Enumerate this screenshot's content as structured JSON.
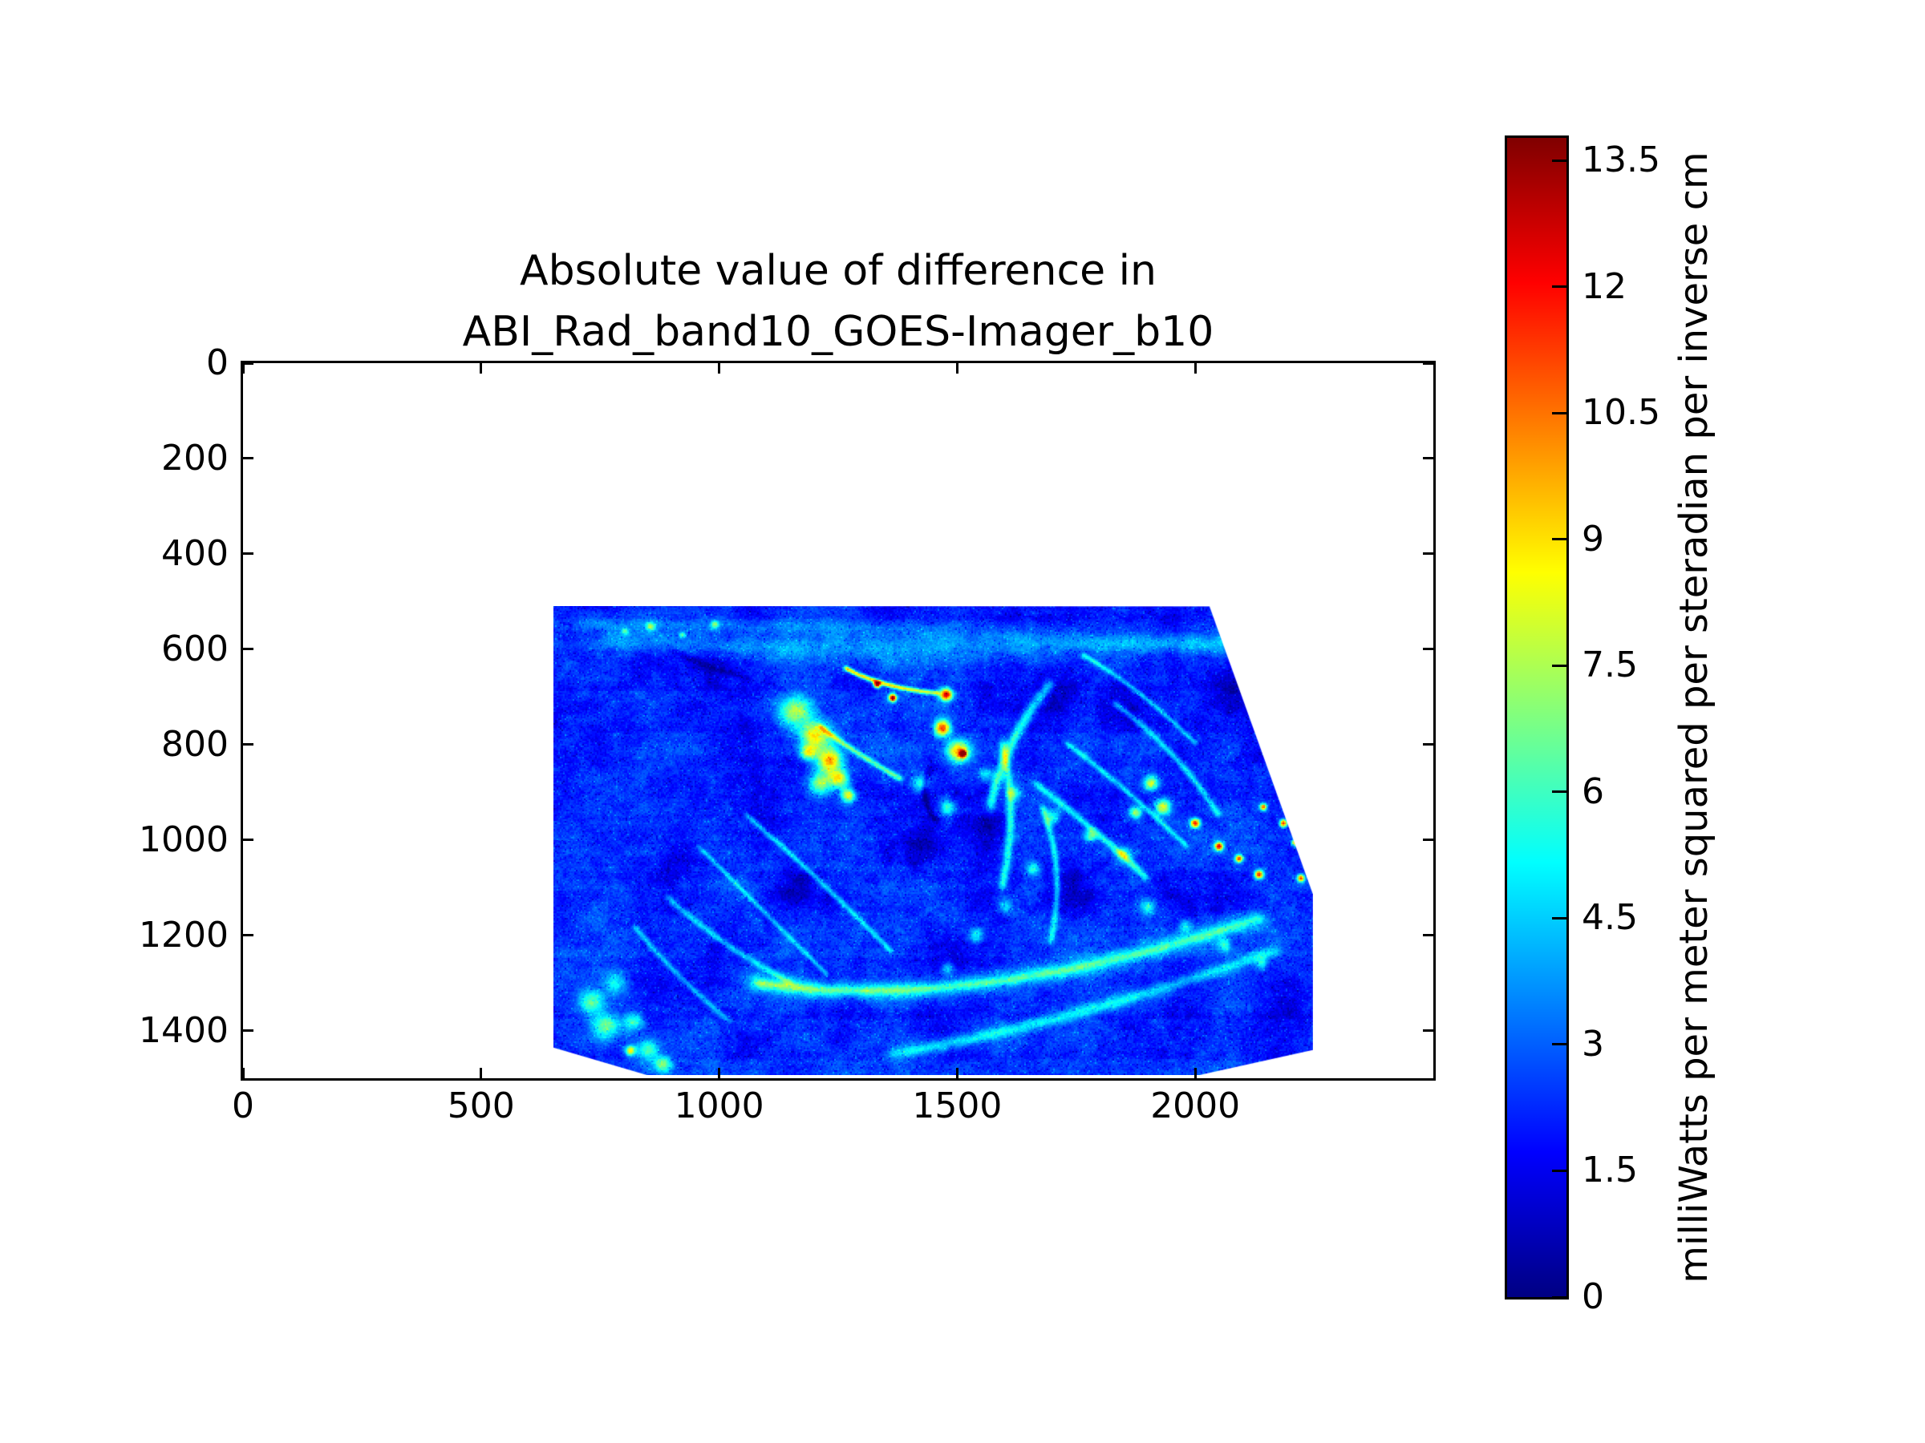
{
  "figure": {
    "title_line1": "Absolute value of difference in",
    "title_line2": "ABI_Rad_band10_GOES-Imager_b10"
  },
  "chart_data": {
    "type": "heatmap",
    "title": "Absolute value of difference in ABI_Rad_band10_GOES-Imager_b10",
    "xlabel": "",
    "ylabel": "",
    "colormap": "jet",
    "grid": false,
    "x_ticks": [
      0,
      500,
      1000,
      1500,
      2000
    ],
    "y_ticks": [
      0,
      200,
      400,
      600,
      800,
      1000,
      1200,
      1400
    ],
    "xlim": [
      0,
      2500
    ],
    "ylim": [
      1500,
      0
    ],
    "y_axis_inverted": true,
    "value_range": [
      0,
      13.77
    ],
    "colorbar_ticks": [
      0,
      1.5,
      3,
      4.5,
      6,
      7.5,
      9,
      10.5,
      12,
      13.5
    ],
    "colorbar_label": "milliWatts per meter squared per steradian per inverse cm",
    "data_extent": {
      "x": [
        652,
        2247
      ],
      "y": [
        509,
        1493
      ]
    },
    "region_polygon": [
      [
        652,
        509
      ],
      [
        2030,
        510
      ],
      [
        2247,
        1113
      ],
      [
        2247,
        1440
      ],
      [
        2008,
        1493
      ],
      [
        849,
        1493
      ],
      [
        652,
        1435
      ]
    ],
    "description": "Irregular swath of satellite radiance differences: background mostly 1-3 (blue) with cyan/green cloud streaks 4-6, yellow-orange hotspots 8-12 and sparse red maxima near 13.5",
    "features": {
      "hotspots": [
        [
          1160,
          730,
          35,
          5
        ],
        [
          1200,
          780,
          30,
          6.5
        ],
        [
          1230,
          830,
          26,
          7.5
        ],
        [
          1185,
          815,
          16,
          5
        ],
        [
          1250,
          870,
          20,
          6
        ],
        [
          1210,
          880,
          24,
          5
        ],
        [
          1270,
          905,
          15,
          6.5
        ],
        [
          1330,
          672,
          7,
          11.5
        ],
        [
          1363,
          700,
          8,
          11.5
        ],
        [
          1477,
          693,
          13,
          9.8
        ],
        [
          1469,
          763,
          17,
          9.2
        ],
        [
          1503,
          812,
          24,
          7.6
        ],
        [
          1512,
          817,
          7,
          10.6
        ],
        [
          1907,
          879,
          15,
          6.2
        ],
        [
          1932,
          929,
          17,
          6.6
        ],
        [
          1875,
          940,
          13,
          5.4
        ],
        [
          2000,
          963,
          10,
          9.6
        ],
        [
          2050,
          1013,
          9,
          10
        ],
        [
          2092,
          1039,
          8,
          9
        ],
        [
          2134,
          1072,
          9,
          9.6
        ],
        [
          2143,
          929,
          7,
          8.6
        ],
        [
          2185,
          963,
          8,
          9.2
        ],
        [
          2210,
          1005,
          7,
          8.2
        ],
        [
          2222,
          1080,
          8,
          9
        ],
        [
          812,
          1442,
          11,
          6.6
        ],
        [
          760,
          1390,
          28,
          4
        ],
        [
          820,
          1380,
          20,
          3.6
        ],
        [
          780,
          1300,
          24,
          3
        ],
        [
          730,
          1340,
          26,
          3.4
        ],
        [
          850,
          1440,
          22,
          4
        ],
        [
          880,
          1470,
          18,
          4.4
        ],
        [
          854,
          551,
          9,
          4
        ],
        [
          921,
          568,
          7,
          3.6
        ],
        [
          989,
          546,
          8,
          4
        ],
        [
          800,
          560,
          7,
          3.4
        ],
        [
          1420,
          880,
          18,
          3.4
        ],
        [
          1480,
          930,
          16,
          3.8
        ],
        [
          1560,
          860,
          14,
          3.2
        ],
        [
          1620,
          900,
          15,
          3.6
        ],
        [
          1700,
          950,
          16,
          3.4
        ],
        [
          1780,
          990,
          14,
          3.8
        ],
        [
          1850,
          1030,
          15,
          3.4
        ],
        [
          1660,
          1060,
          14,
          3.2
        ],
        [
          1600,
          1140,
          16,
          3.0
        ],
        [
          1540,
          1200,
          15,
          3.2
        ],
        [
          1480,
          1270,
          14,
          3.0
        ],
        [
          1900,
          1140,
          16,
          3.2
        ],
        [
          1980,
          1180,
          14,
          3.0
        ],
        [
          2060,
          1220,
          13,
          3.4
        ],
        [
          2140,
          1260,
          12,
          3.0
        ]
      ],
      "dark_patches": [
        [
          1700,
          700,
          60,
          -1.1
        ],
        [
          1850,
          730,
          50,
          -1.2
        ],
        [
          2080,
          680,
          55,
          -1.0
        ],
        [
          1560,
          980,
          40,
          -1.0
        ],
        [
          1730,
          1090,
          55,
          -1.1
        ],
        [
          1160,
          1100,
          50,
          -0.9
        ],
        [
          900,
          1060,
          45,
          -0.8
        ],
        [
          1420,
          1010,
          40,
          -1.0
        ],
        [
          2120,
          820,
          42,
          -0.9
        ],
        [
          1000,
          1230,
          40,
          -0.8
        ],
        [
          1280,
          640,
          45,
          -0.7
        ],
        [
          980,
          620,
          40,
          -0.8
        ],
        [
          2190,
          1350,
          45,
          -0.9
        ],
        [
          1480,
          1250,
          50,
          -0.9
        ],
        [
          1950,
          600,
          50,
          -0.6
        ],
        [
          1100,
          960,
          35,
          -0.8
        ]
      ],
      "streaks": [
        [
          1263,
          637,
          1340,
          680,
          1460,
          690,
          10,
          6.5
        ],
        [
          1696,
          669,
          1595,
          795,
          1570,
          929,
          22,
          3.5
        ],
        [
          1831,
          711,
          1966,
          812,
          2050,
          947,
          14,
          2.8
        ],
        [
          1730,
          795,
          1865,
          896,
          1983,
          1013,
          12,
          2.6
        ],
        [
          1663,
          879,
          1797,
          980,
          1898,
          1080,
          16,
          3.0
        ],
        [
          1764,
          610,
          1882,
          677,
          2000,
          795,
          10,
          2.4
        ],
        [
          1595,
          795,
          1629,
          947,
          1595,
          1097,
          18,
          3.2
        ],
        [
          1679,
          929,
          1730,
          1063,
          1696,
          1215,
          14,
          2.8
        ],
        [
          1073,
          1299,
          1528,
          1366,
          2134,
          1164,
          40,
          2.8
        ],
        [
          1073,
          1299,
          1528,
          1366,
          2134,
          1164,
          16,
          1.5
        ],
        [
          1359,
          1450,
          1747,
          1383,
          2168,
          1232,
          26,
          2.6
        ],
        [
          1056,
          946,
          1208,
          1080,
          1359,
          1232,
          12,
          2.6
        ],
        [
          955,
          1013,
          1090,
          1148,
          1225,
          1282,
          10,
          2.2
        ],
        [
          753,
          577,
          1326,
          627,
          2168,
          577,
          55,
          1.4
        ],
        [
          700,
          540,
          1500,
          560,
          2240,
          600,
          40,
          1.0
        ],
        [
          1210,
          760,
          1290,
          820,
          1380,
          870,
          12,
          4.0
        ],
        [
          890,
          1120,
          1000,
          1220,
          1150,
          1300,
          14,
          2.4
        ],
        [
          820,
          1180,
          900,
          1280,
          1020,
          1380,
          12,
          2.2
        ],
        [
          1444,
          845,
          1410,
          913,
          1460,
          963,
          14,
          -1.4
        ],
        [
          900,
          600,
          980,
          640,
          1060,
          660,
          16,
          -1.0
        ]
      ]
    }
  }
}
